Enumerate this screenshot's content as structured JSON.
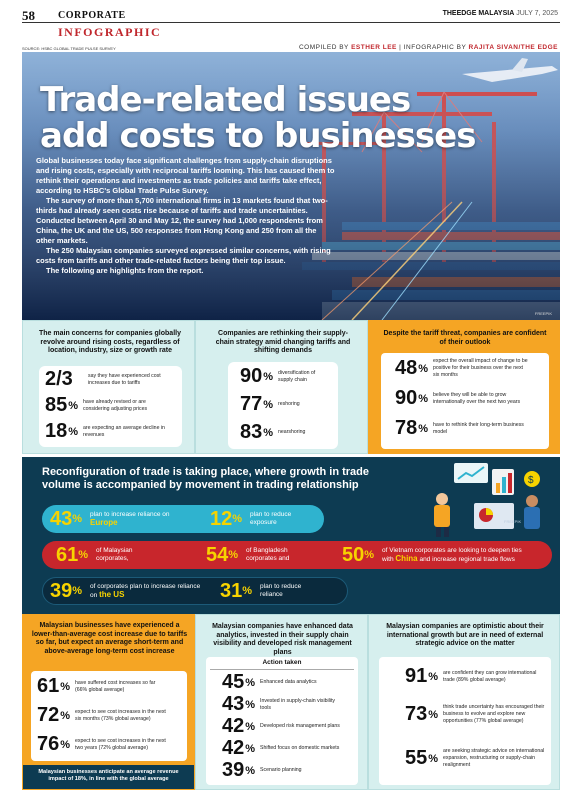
{
  "header": {
    "page_number": "58",
    "section": "CORPORATE",
    "publication": "THEEDGE MALAYSIA",
    "date": "JULY 7, 2025",
    "kicker": "INFOGRAPHIC",
    "source": "SOURCE: HSBC GLOBAL TRADE PULSE SURVEY",
    "credit_label_1": "COMPILED BY",
    "credit_name_1": "ESTHER LEE",
    "credit_label_2": "INFOGRAPHIC BY",
    "credit_name_2": "RAJITA SIVAN/THE EDGE"
  },
  "hero": {
    "title_line1": "Trade-related issues",
    "title_line2": "add costs to businesses",
    "para1": "Global businesses today face significant challenges from supply-chain disruptions and rising costs, especially with reciprocal tariffs looming. This has caused them to rethink their operations and investments as trade policies and tariffs take effect, according to HSBC's Global Trade Pulse Survey.",
    "para2": "The survey of more than 5,700 international firms in 13 markets found that two-thirds had already seen costs rise because of tariffs and trade uncertainties. Conducted between April 30 and May 12, the survey had 1,000 respondents from China, the UK and the US, 500 responses from Hong Kong and 250 from all the other markets.",
    "para3": "The 250 Malaysian companies surveyed expressed similar concerns, with rising costs from tariffs and other trade-related factors being their top issue.",
    "para4": "The following are highlights from the report.",
    "photo_credit": "FREEPIK"
  },
  "panel1": {
    "title": "The main concerns for companies globally revolve around rising costs, regardless of location, industry, size or growth rate",
    "stats": [
      {
        "value": "2/3",
        "unit": "",
        "text": "say they have experienced cost increases due to tariffs"
      },
      {
        "value": "85",
        "unit": "%",
        "text": "have already revised or are considering adjusting prices"
      },
      {
        "value": "18",
        "unit": "%",
        "text": "are expecting an average decline in revenues"
      }
    ]
  },
  "panel2": {
    "title": "Companies are rethinking their supply-chain strategy amid changing tariffs and shifting demands",
    "stats": [
      {
        "value": "90",
        "unit": "%",
        "text": "diversification of supply chain"
      },
      {
        "value": "77",
        "unit": "%",
        "text": "reshoring"
      },
      {
        "value": "83",
        "unit": "%",
        "text": "nearshoring"
      }
    ]
  },
  "panel3": {
    "title": "Despite the tariff threat, companies are confident of their outlook",
    "stats": [
      {
        "value": "48",
        "unit": "%",
        "text": "expect the overall impact of change to be positive for their business over the next six months"
      },
      {
        "value": "90",
        "unit": "%",
        "text": "believe they will be able to grow internationally over the next two years"
      },
      {
        "value": "78",
        "unit": "%",
        "text": "have to rethink their long-term business model"
      }
    ]
  },
  "band": {
    "title": "Reconfiguration of trade is taking place, where growth in trade volume is accompanied by movement in trading relationship",
    "credit": "FREEPIK",
    "row1": [
      {
        "value": "43",
        "unit": "%",
        "text": "plan to increase reliance on",
        "highlight": "Europe"
      },
      {
        "value": "12",
        "unit": "%",
        "text": "plan to reduce exposure",
        "highlight": ""
      }
    ],
    "row2": [
      {
        "value": "61",
        "unit": "%",
        "text": "of Malaysian corporates,",
        "highlight": ""
      },
      {
        "value": "54",
        "unit": "%",
        "text": "of Bangladesh corporates and",
        "highlight": ""
      },
      {
        "value": "50",
        "unit": "%",
        "text_before": "of Vietnam corporates are looking to deepen ties with",
        "highlight": "China",
        "text_after": "and increase regional trade flows"
      }
    ],
    "row3": [
      {
        "value": "39",
        "unit": "%",
        "text": "of corporates plan to increase reliance on",
        "highlight": "the US"
      },
      {
        "value": "31",
        "unit": "%",
        "text": "plan to reduce reliance",
        "highlight": ""
      }
    ]
  },
  "panel4": {
    "title": "Malaysian businesses have experienced a lower-than-average cost increase due to tariffs so far, but expect an average short-term and above-average long-term cost increase",
    "stats": [
      {
        "value": "61",
        "unit": "%",
        "text": "have suffered cost increases so far (66% global average)"
      },
      {
        "value": "72",
        "unit": "%",
        "text": "expect to see cost increases in the next six months (73% global average)"
      },
      {
        "value": "76",
        "unit": "%",
        "text": "expect to see cost increases in the next two years (72% global average)"
      }
    ],
    "footer": "Malaysian businesses anticipate an average revenue impact of 18%, in line with the global average"
  },
  "panel5": {
    "title": "Malaysian companies have enhanced data analytics, invested in their supply chain visibility and developed risk management plans",
    "table_header": "Action taken",
    "stats": [
      {
        "value": "45",
        "unit": "%",
        "text": "Enhanced data analytics"
      },
      {
        "value": "43",
        "unit": "%",
        "text": "Invested in supply-chain visibility tools"
      },
      {
        "value": "42",
        "unit": "%",
        "text": "Developed risk management plans"
      },
      {
        "value": "42",
        "unit": "%",
        "text": "Shifted focus on domestic markets"
      },
      {
        "value": "39",
        "unit": "%",
        "text": "Scenario planning"
      }
    ]
  },
  "panel6": {
    "title": "Malaysian companies are optimistic about their international growth but are in need of external strategic advice on the matter",
    "stats": [
      {
        "value": "91",
        "unit": "%",
        "text": "are confident they can grow international trade (89% global average)"
      },
      {
        "value": "73",
        "unit": "%",
        "text": "think trade uncertainty has encouraged their business to evolve and explore new opportunities (77% global average)"
      },
      {
        "value": "55",
        "unit": "%",
        "text": "are seeking strategic advice on international expansion, restructuring or supply-chain realignment"
      }
    ]
  },
  "colors": {
    "accent_red": "#c0272d",
    "panel_teal": "#d6efee",
    "panel_orange": "#f5a524",
    "band_navy": "#0d3b52",
    "pill_cyan": "#2fb3cf",
    "pill_red": "#c8262c",
    "highlight_yellow": "#f7d300"
  }
}
